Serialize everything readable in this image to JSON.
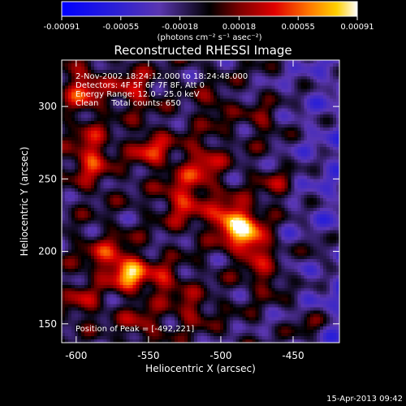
{
  "chart_data": {
    "type": "heatmap",
    "title": "Reconstructed RHESSI Image",
    "xlabel": "Heliocentric X (arcsec)",
    "ylabel": "Heliocentric Y (arcsec)",
    "xlim": [
      -610,
      -418
    ],
    "ylim": [
      137,
      332
    ],
    "x_ticks": [
      -600,
      -550,
      -500,
      -450
    ],
    "y_ticks": [
      150,
      200,
      250,
      300
    ],
    "colorbar": {
      "ticks": [
        "-0.00091",
        "-0.00055",
        "-0.00018",
        "0.00018",
        "0.00055",
        "0.00091"
      ],
      "range": [
        -0.00091,
        0.00091
      ],
      "unit_label": "(photons cm⁻² s⁻¹ asec⁻²)"
    },
    "info_lines": [
      "2-Nov-2002 18:24:12.000 to 18:24:48.000",
      "Detectors: 4F 5F 6F 7F 8F, Att 0",
      "Energy Range: 12.0 - 25.0 keV",
      "Clean     Total counts: 650"
    ],
    "peak_label": "Position of Peak = [-492,221]",
    "peak": {
      "x": -492,
      "y": 221
    },
    "sources": [
      {
        "x": -492,
        "y": 221,
        "sx": 10,
        "sy": 9,
        "a": 1.0
      },
      {
        "x": -478,
        "y": 206,
        "sx": 9,
        "sy": 10,
        "a": 0.75
      },
      {
        "x": -563,
        "y": 184,
        "sx": 8,
        "sy": 8,
        "a": 0.82
      },
      {
        "x": -578,
        "y": 196,
        "sx": 12,
        "sy": 10,
        "a": 0.5
      },
      {
        "x": -526,
        "y": 236,
        "sx": 10,
        "sy": 12,
        "a": 0.55
      },
      {
        "x": -512,
        "y": 260,
        "sx": 9,
        "sy": 12,
        "a": 0.5
      },
      {
        "x": -548,
        "y": 270,
        "sx": 10,
        "sy": 9,
        "a": 0.55
      },
      {
        "x": -590,
        "y": 266,
        "sx": 9,
        "sy": 14,
        "a": 0.6
      },
      {
        "x": -595,
        "y": 312,
        "sx": 10,
        "sy": 10,
        "a": 0.6
      },
      {
        "x": -560,
        "y": 312,
        "sx": 9,
        "sy": 9,
        "a": 0.5
      },
      {
        "x": -540,
        "y": 180,
        "sx": 9,
        "sy": 8,
        "a": 0.5
      },
      {
        "x": -595,
        "y": 165,
        "sx": 8,
        "sy": 8,
        "a": 0.42
      },
      {
        "x": -520,
        "y": 160,
        "sx": 9,
        "sy": 8,
        "a": 0.4
      },
      {
        "x": -555,
        "y": 150,
        "sx": 10,
        "sy": 8,
        "a": 0.38
      },
      {
        "x": -467,
        "y": 180,
        "sx": 8,
        "sy": 8,
        "a": 0.4
      },
      {
        "x": -462,
        "y": 245,
        "sx": 8,
        "sy": 9,
        "a": 0.38
      },
      {
        "x": -470,
        "y": 290,
        "sx": 8,
        "sy": 8,
        "a": 0.32
      },
      {
        "x": -505,
        "y": 300,
        "sx": 8,
        "sy": 8,
        "a": 0.3
      },
      {
        "x": -440,
        "y": 150,
        "sx": 8,
        "sy": 7,
        "a": 0.35
      },
      {
        "x": -432,
        "y": 200,
        "sx": 7,
        "sy": 7,
        "a": 0.3
      }
    ]
  },
  "footer": {
    "date_stamp": "15-Apr-2013 09:42"
  }
}
